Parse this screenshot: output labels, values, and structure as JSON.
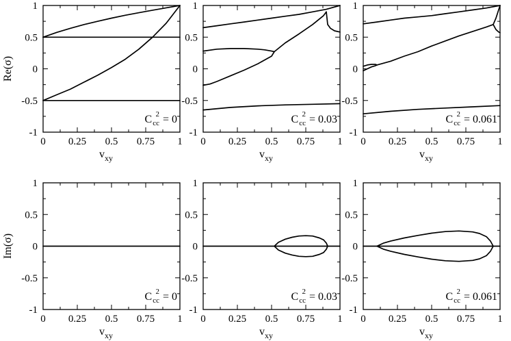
{
  "colors": {
    "line": "#000000",
    "background": "#ffffff"
  },
  "chart_data": [
    {
      "type": "line",
      "row": "top",
      "ylabel": "Re(σ)",
      "xlabel": "v_xy",
      "xlabel_base": "v",
      "xlabel_sub": "xy",
      "xlim": [
        0,
        1
      ],
      "ylim": [
        -1,
        1
      ],
      "xticks": [
        0,
        0.25,
        0.5,
        0.75,
        1
      ],
      "xtick_labels": [
        "0",
        "0.25",
        "0.5",
        "0.75",
        "1"
      ],
      "yticks": [
        -1,
        -0.5,
        0,
        0.5,
        1
      ],
      "ytick_labels": [
        "-1",
        "-0.5",
        "0",
        "0.5",
        "1"
      ],
      "annotation": {
        "base": "C",
        "sub": "cc",
        "sup": "2",
        "value": "= 0"
      },
      "series": [
        {
          "x": [
            0,
            0.1,
            0.2,
            0.3,
            0.4,
            0.5,
            0.6,
            0.7,
            0.8,
            0.9,
            1
          ],
          "y": [
            0.5,
            0.575,
            0.64,
            0.7,
            0.75,
            0.8,
            0.845,
            0.885,
            0.925,
            0.963,
            1
          ]
        },
        {
          "x": [
            0,
            1
          ],
          "y": [
            0.5,
            0.5
          ]
        },
        {
          "x": [
            0,
            0.1,
            0.2,
            0.3,
            0.4,
            0.5,
            0.6,
            0.7,
            0.8,
            0.9,
            1
          ],
          "y": [
            -0.5,
            -0.41,
            -0.32,
            -0.21,
            -0.1,
            0.02,
            0.15,
            0.31,
            0.5,
            0.72,
            1
          ]
        },
        {
          "x": [
            0,
            1
          ],
          "y": [
            -0.5,
            -0.5
          ]
        }
      ]
    },
    {
      "type": "line",
      "row": "top",
      "ylabel": "",
      "xlabel": "v_xy",
      "xlabel_base": "v",
      "xlabel_sub": "xy",
      "xlim": [
        0,
        1
      ],
      "ylim": [
        -1,
        1
      ],
      "xticks": [
        0,
        0.25,
        0.5,
        0.75,
        1
      ],
      "xtick_labels": [
        "0",
        "0.25",
        "0.5",
        "0.75",
        "1"
      ],
      "yticks": [
        -1,
        -0.5,
        0,
        0.5,
        1
      ],
      "ytick_labels": [
        "-1",
        "-0.5",
        "0",
        "0.5",
        "1"
      ],
      "annotation": {
        "base": "C",
        "sub": "cc",
        "sup": "2",
        "value": "= 0.03"
      },
      "series": [
        {
          "x": [
            0,
            0.1,
            0.2,
            0.3,
            0.4,
            0.5,
            0.6,
            0.7,
            0.8,
            0.9,
            1
          ],
          "y": [
            0.65,
            0.68,
            0.71,
            0.74,
            0.77,
            0.8,
            0.83,
            0.86,
            0.9,
            0.94,
            1
          ]
        },
        {
          "x": [
            0.9,
            0.91,
            0.93,
            0.96,
            1
          ],
          "y": [
            0.9,
            0.7,
            0.64,
            0.6,
            0.58
          ]
        },
        {
          "x": [
            0,
            0.1,
            0.2,
            0.3,
            0.4,
            0.45,
            0.5,
            0.52
          ],
          "y": [
            0.28,
            0.31,
            0.32,
            0.32,
            0.31,
            0.3,
            0.28,
            0.27
          ]
        },
        {
          "x": [
            0,
            0.05,
            0.1,
            0.2,
            0.3,
            0.4,
            0.5,
            0.52
          ],
          "y": [
            -0.26,
            -0.24,
            -0.2,
            -0.11,
            -0.02,
            0.08,
            0.2,
            0.27
          ]
        },
        {
          "x": [
            0.52,
            0.6,
            0.7,
            0.8,
            0.88,
            0.9
          ],
          "y": [
            0.27,
            0.41,
            0.55,
            0.7,
            0.84,
            0.9
          ]
        },
        {
          "x": [
            0,
            0.2,
            0.4,
            0.6,
            0.8,
            1
          ],
          "y": [
            -0.65,
            -0.61,
            -0.585,
            -0.57,
            -0.56,
            -0.55
          ]
        }
      ]
    },
    {
      "type": "line",
      "row": "top",
      "ylabel": "",
      "xlabel": "v_xy",
      "xlabel_base": "v",
      "xlabel_sub": "xy",
      "xlim": [
        0,
        1
      ],
      "ylim": [
        -1,
        1
      ],
      "xticks": [
        0,
        0.25,
        0.5,
        0.75,
        1
      ],
      "xtick_labels": [
        "0",
        "0.25",
        "0.5",
        "0.75",
        "1"
      ],
      "yticks": [
        -1,
        -0.5,
        0,
        0.5,
        1
      ],
      "ytick_labels": [
        "-1",
        "-0.5",
        "0",
        "0.5",
        "1"
      ],
      "annotation": {
        "base": "C",
        "sub": "cc",
        "sup": "2",
        "value": "= 0.061"
      },
      "series": [
        {
          "x": [
            0,
            0.1,
            0.2,
            0.3,
            0.4,
            0.5,
            0.6,
            0.7,
            0.8,
            0.9,
            1
          ],
          "y": [
            0.71,
            0.74,
            0.77,
            0.8,
            0.82,
            0.84,
            0.87,
            0.9,
            0.93,
            0.96,
            1
          ]
        },
        {
          "x": [
            0.95,
            0.97,
            1
          ],
          "y": [
            0.7,
            0.8,
            1
          ]
        },
        {
          "x": [
            0.95,
            0.97,
            0.99,
            1
          ],
          "y": [
            0.7,
            0.62,
            0.58,
            0.57
          ]
        },
        {
          "x": [
            0.1,
            0.2,
            0.3,
            0.4,
            0.5,
            0.6,
            0.7,
            0.8,
            0.9,
            0.95
          ],
          "y": [
            0.06,
            0.12,
            0.2,
            0.27,
            0.36,
            0.44,
            0.52,
            0.59,
            0.66,
            0.7
          ]
        },
        {
          "x": [
            0,
            0.03,
            0.06,
            0.09,
            0.1
          ],
          "y": [
            0.04,
            0.06,
            0.07,
            0.07,
            0.06
          ]
        },
        {
          "x": [
            0,
            0.03,
            0.06,
            0.09,
            0.1
          ],
          "y": [
            -0.03,
            0.0,
            0.03,
            0.05,
            0.06
          ]
        },
        {
          "x": [
            0,
            0.2,
            0.4,
            0.6,
            0.8,
            1
          ],
          "y": [
            -0.71,
            -0.67,
            -0.64,
            -0.62,
            -0.6,
            -0.58
          ]
        }
      ]
    },
    {
      "type": "line",
      "row": "bottom",
      "ylabel": "Im(σ)",
      "xlabel": "v_xy",
      "xlabel_base": "v",
      "xlabel_sub": "xy",
      "xlim": [
        0,
        1
      ],
      "ylim": [
        -1,
        1
      ],
      "xticks": [
        0,
        0.25,
        0.5,
        0.75,
        1
      ],
      "xtick_labels": [
        "0",
        "0.25",
        "0.5",
        "0.75",
        "1"
      ],
      "yticks": [
        -1,
        -0.5,
        0,
        0.5,
        1
      ],
      "ytick_labels": [
        "-1",
        "-0.5",
        "0",
        "0.5",
        "1"
      ],
      "annotation": {
        "base": "C",
        "sub": "cc",
        "sup": "2",
        "value": "= 0"
      },
      "series": [
        {
          "x": [
            0,
            1
          ],
          "y": [
            0,
            0
          ]
        }
      ]
    },
    {
      "type": "line",
      "row": "bottom",
      "ylabel": "",
      "xlabel": "v_xy",
      "xlabel_base": "v",
      "xlabel_sub": "xy",
      "xlim": [
        0,
        1
      ],
      "ylim": [
        -1,
        1
      ],
      "xticks": [
        0,
        0.25,
        0.5,
        0.75,
        1
      ],
      "xtick_labels": [
        "0",
        "0.25",
        "0.5",
        "0.75",
        "1"
      ],
      "yticks": [
        -1,
        -0.5,
        0,
        0.5,
        1
      ],
      "ytick_labels": [
        "-1",
        "-0.5",
        "0",
        "0.5",
        "1"
      ],
      "annotation": {
        "base": "C",
        "sub": "cc",
        "sup": "2",
        "value": "= 0.03"
      },
      "series": [
        {
          "x": [
            0,
            1
          ],
          "y": [
            0,
            0
          ]
        },
        {
          "x": [
            0.52,
            0.55,
            0.6,
            0.65,
            0.7,
            0.75,
            0.8,
            0.85,
            0.88,
            0.9,
            0.91,
            0.9,
            0.88,
            0.85,
            0.8,
            0.75,
            0.7,
            0.65,
            0.6,
            0.55,
            0.52
          ],
          "y": [
            0,
            0.06,
            0.11,
            0.14,
            0.16,
            0.165,
            0.16,
            0.13,
            0.1,
            0.05,
            0,
            -0.05,
            -0.1,
            -0.13,
            -0.16,
            -0.165,
            -0.16,
            -0.14,
            -0.11,
            -0.06,
            0
          ]
        }
      ]
    },
    {
      "type": "line",
      "row": "bottom",
      "ylabel": "",
      "xlabel": "v_xy",
      "xlabel_base": "v",
      "xlabel_sub": "xy",
      "xlim": [
        0,
        1
      ],
      "ylim": [
        -1,
        1
      ],
      "xticks": [
        0,
        0.25,
        0.5,
        0.75,
        1
      ],
      "xtick_labels": [
        "0",
        "0.25",
        "0.5",
        "0.75",
        "1"
      ],
      "yticks": [
        -1,
        -0.5,
        0,
        0.5,
        1
      ],
      "ytick_labels": [
        "-1",
        "-0.5",
        "0",
        "0.5",
        "1"
      ],
      "annotation": {
        "base": "C",
        "sub": "cc",
        "sup": "2",
        "value": "= 0.061"
      },
      "series": [
        {
          "x": [
            0,
            1
          ],
          "y": [
            0,
            0
          ]
        },
        {
          "x": [
            0.1,
            0.15,
            0.2,
            0.3,
            0.4,
            0.5,
            0.6,
            0.7,
            0.8,
            0.85,
            0.9,
            0.93,
            0.95,
            0.93,
            0.9,
            0.85,
            0.8,
            0.7,
            0.6,
            0.5,
            0.4,
            0.3,
            0.2,
            0.15,
            0.1
          ],
          "y": [
            0,
            0.05,
            0.08,
            0.13,
            0.17,
            0.205,
            0.23,
            0.24,
            0.225,
            0.2,
            0.15,
            0.08,
            0,
            -0.08,
            -0.15,
            -0.2,
            -0.225,
            -0.24,
            -0.23,
            -0.205,
            -0.17,
            -0.13,
            -0.08,
            -0.05,
            0
          ]
        }
      ]
    }
  ]
}
